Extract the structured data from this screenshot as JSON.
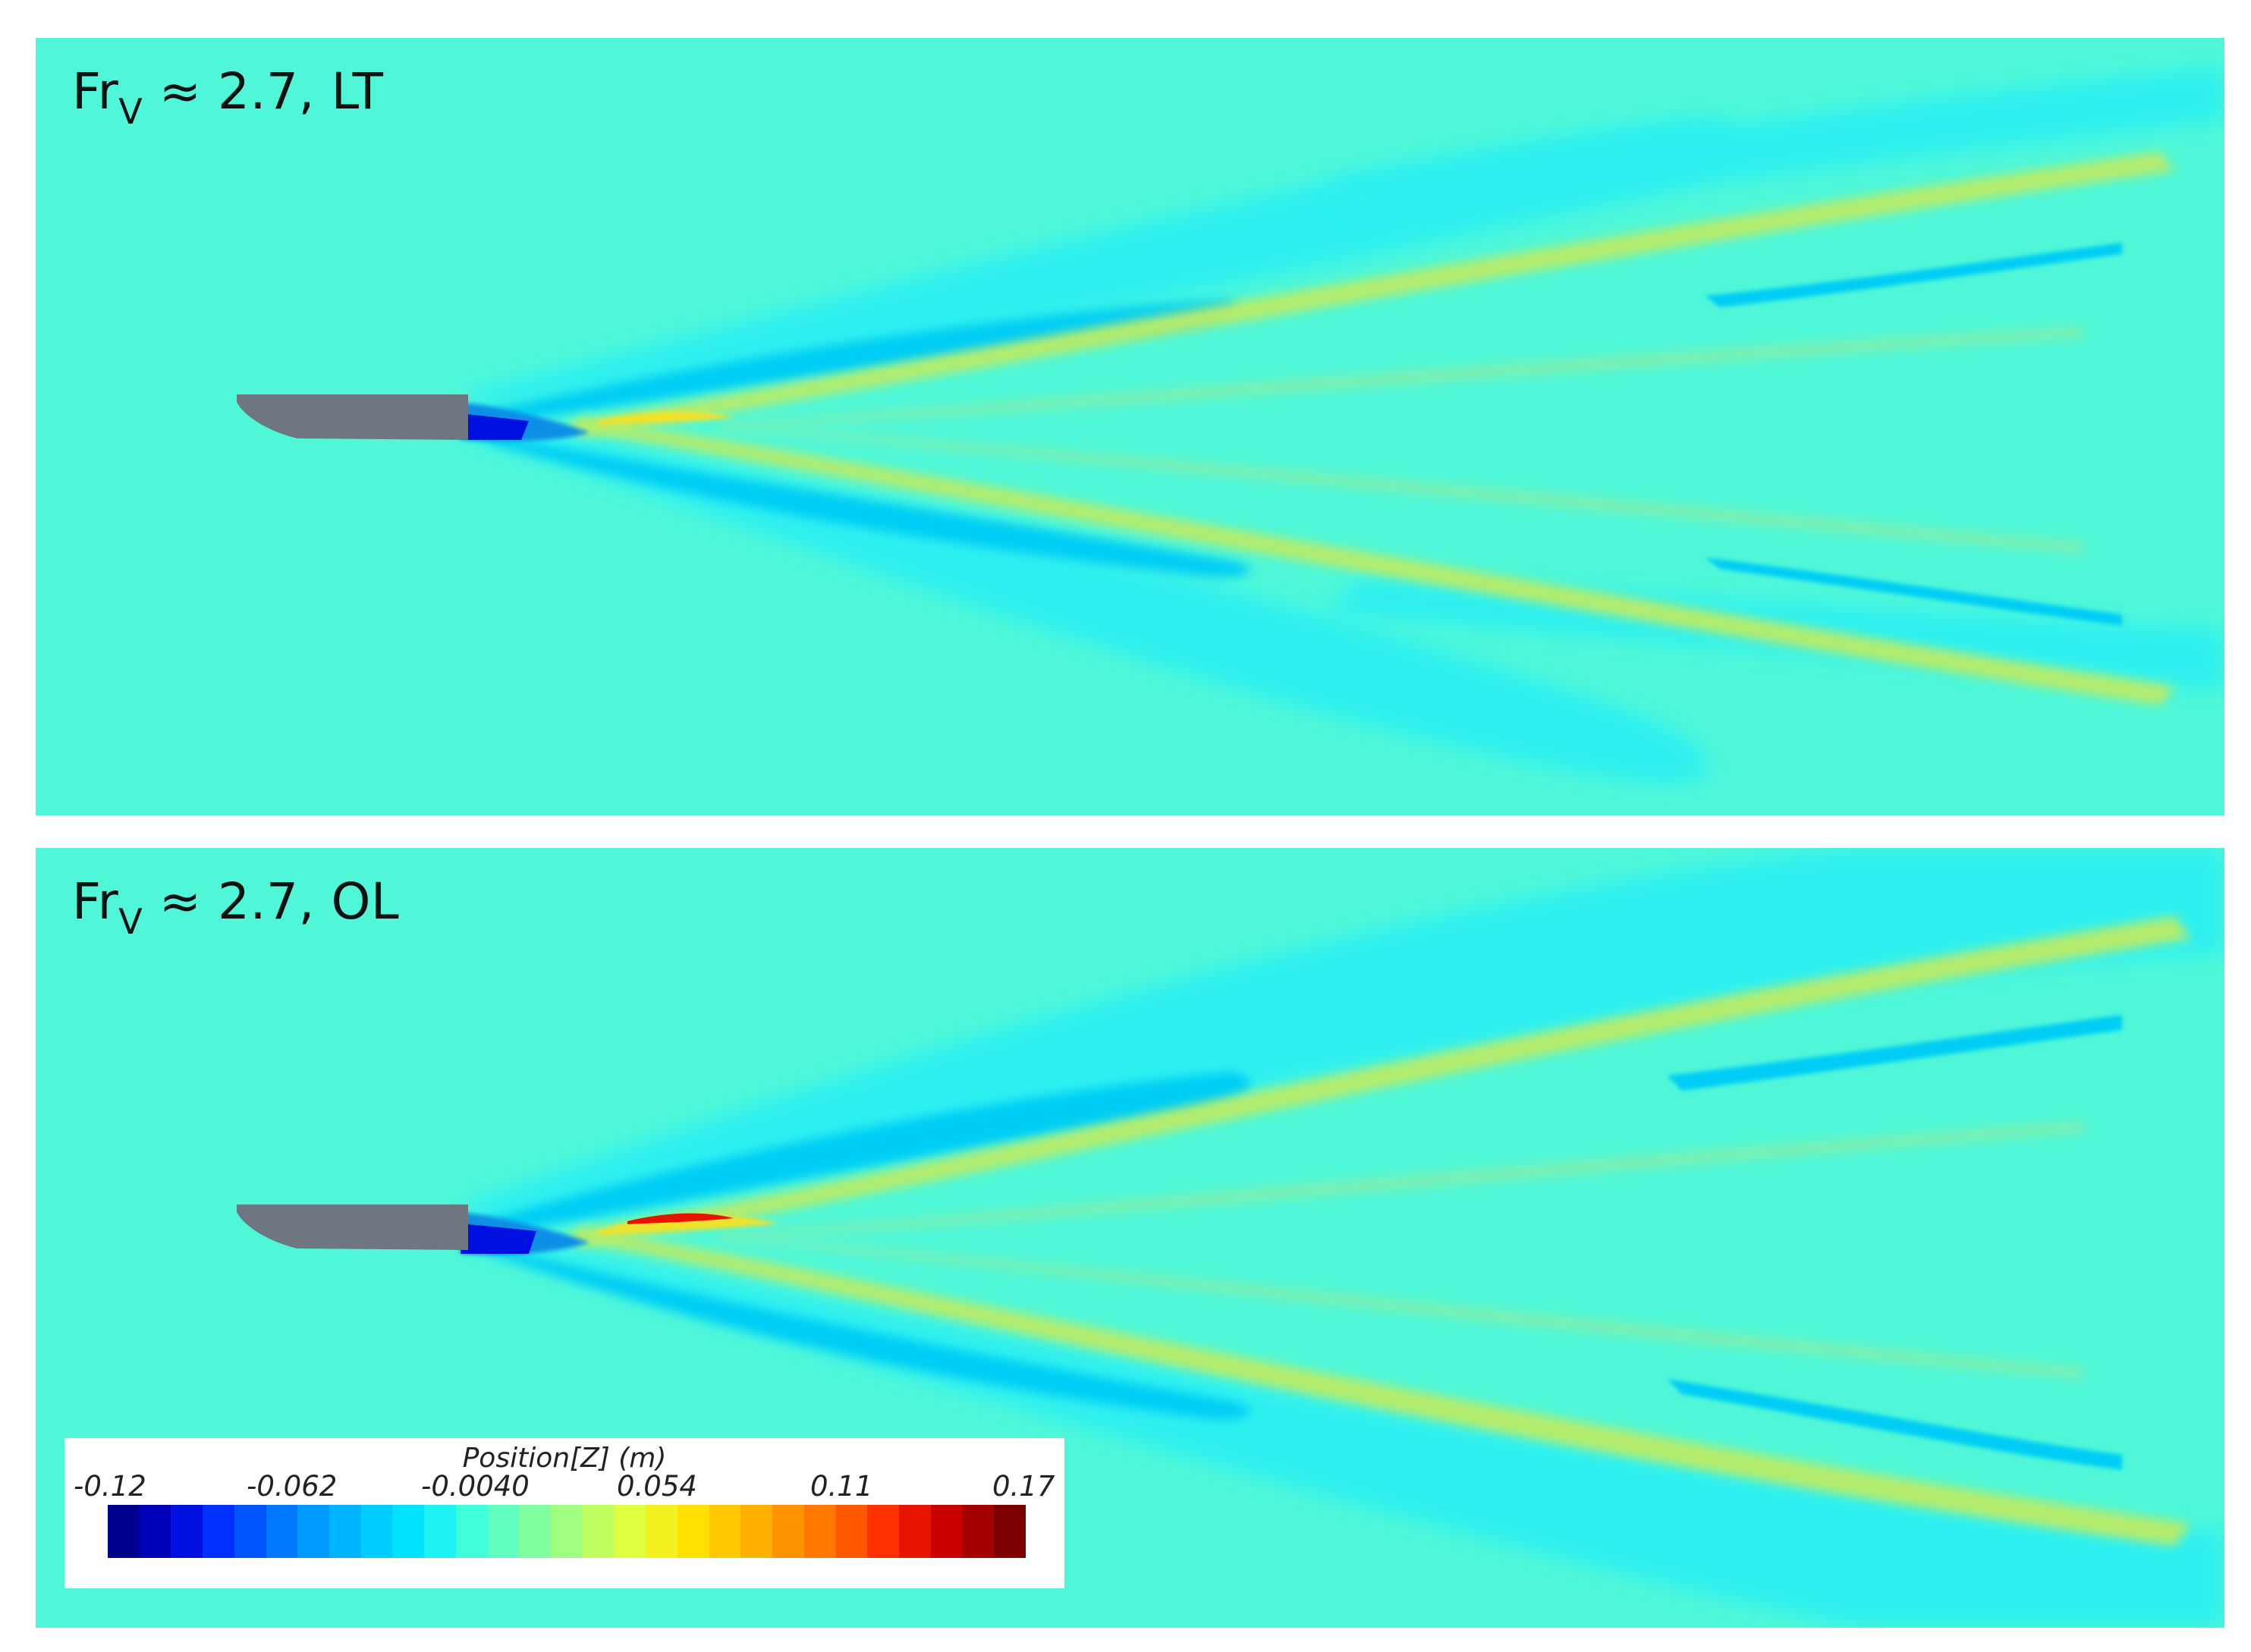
{
  "panels": [
    {
      "id": "top",
      "title": "Fr",
      "title_sub": "V",
      "title_rest": " ≈ 2.7, LT"
    },
    {
      "id": "bottom",
      "title": "Fr",
      "title_sub": "V",
      "title_rest": " ≈ 2.7, OL"
    }
  ],
  "colorbar": {
    "title": "Position[Z] (m)",
    "ticks": [
      "-0.12",
      "-0.062",
      "-0.0040",
      "0.054",
      "0.11",
      "0.17"
    ],
    "colors": [
      "#00008f",
      "#0000b8",
      "#0010e0",
      "#0030ff",
      "#0055ff",
      "#0078ff",
      "#0099ff",
      "#00b4ff",
      "#00ccff",
      "#00e2ff",
      "#1ff2f2",
      "#40ffd8",
      "#60ffc0",
      "#80ffa0",
      "#a0ff80",
      "#c0ff60",
      "#dfff40",
      "#f5f020",
      "#ffe000",
      "#ffc800",
      "#ffb000",
      "#ff9400",
      "#ff7800",
      "#ff5800",
      "#ff3000",
      "#e81400",
      "#c80000",
      "#a40000",
      "#7d0000"
    ]
  },
  "palette": {
    "background_field": "#4ff7d8",
    "trough_light": "#2ff0f0",
    "trough_mid": "#00cdf5",
    "trough_deep": "#0a8fe6",
    "crest_light": "#7ef0b0",
    "crest_mid": "#b5ec6c",
    "crest_high": "#f0e22a",
    "hull": "#6e7680"
  }
}
